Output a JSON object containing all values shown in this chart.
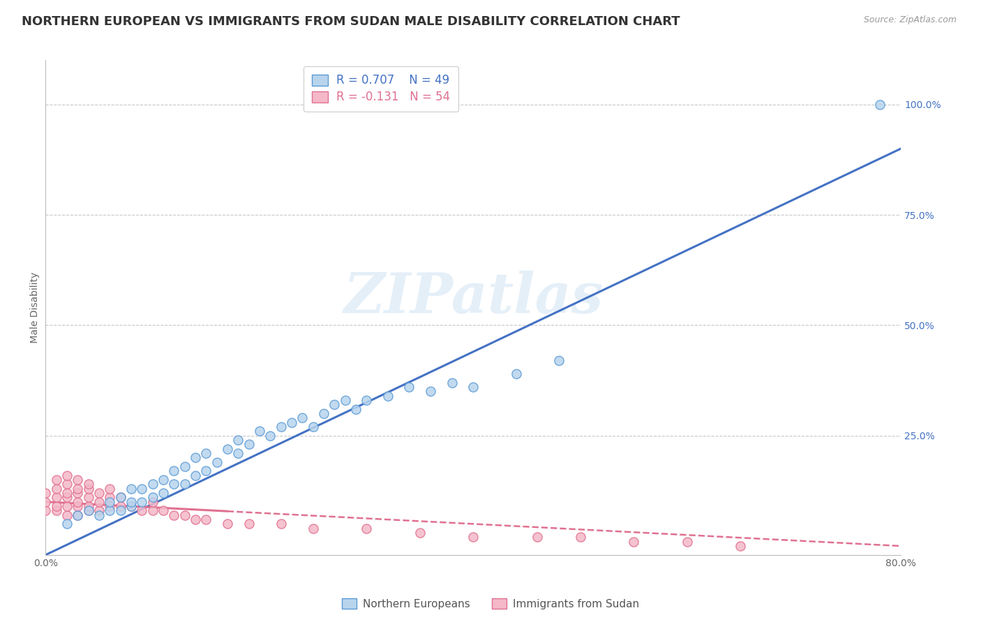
{
  "title": "NORTHERN EUROPEAN VS IMMIGRANTS FROM SUDAN MALE DISABILITY CORRELATION CHART",
  "source": "Source: ZipAtlas.com",
  "ylabel": "Male Disability",
  "xlim": [
    0.0,
    0.8
  ],
  "ylim": [
    -0.02,
    1.1
  ],
  "watermark": "ZIPatlas",
  "ne_color_fill": "#b8d4ed",
  "ne_color_edge": "#5b9bd5",
  "su_color_fill": "#f4b8c8",
  "su_color_edge": "#e07090",
  "ne_line_color": "#4472c4",
  "su_line_color": "#e07090",
  "grid_color": "#c8c8c8",
  "background_color": "#ffffff",
  "title_fontsize": 13,
  "axis_label_fontsize": 10,
  "tick_fontsize": 10,
  "legend_fontsize": 12,
  "ne_x": [
    0.02,
    0.03,
    0.04,
    0.05,
    0.06,
    0.06,
    0.07,
    0.07,
    0.08,
    0.08,
    0.08,
    0.09,
    0.09,
    0.1,
    0.1,
    0.11,
    0.11,
    0.12,
    0.12,
    0.13,
    0.13,
    0.14,
    0.14,
    0.15,
    0.15,
    0.16,
    0.17,
    0.18,
    0.18,
    0.19,
    0.2,
    0.21,
    0.22,
    0.23,
    0.24,
    0.25,
    0.26,
    0.27,
    0.28,
    0.29,
    0.3,
    0.32,
    0.34,
    0.36,
    0.38,
    0.4,
    0.44,
    0.48,
    0.78
  ],
  "ne_y": [
    0.05,
    0.07,
    0.08,
    0.07,
    0.08,
    0.1,
    0.08,
    0.11,
    0.09,
    0.1,
    0.13,
    0.1,
    0.13,
    0.11,
    0.14,
    0.12,
    0.15,
    0.14,
    0.17,
    0.14,
    0.18,
    0.16,
    0.2,
    0.17,
    0.21,
    0.19,
    0.22,
    0.21,
    0.24,
    0.23,
    0.26,
    0.25,
    0.27,
    0.28,
    0.29,
    0.27,
    0.3,
    0.32,
    0.33,
    0.31,
    0.33,
    0.34,
    0.36,
    0.35,
    0.37,
    0.36,
    0.39,
    0.42,
    1.0
  ],
  "su_x": [
    0.0,
    0.0,
    0.0,
    0.01,
    0.01,
    0.01,
    0.01,
    0.01,
    0.02,
    0.02,
    0.02,
    0.02,
    0.02,
    0.02,
    0.03,
    0.03,
    0.03,
    0.03,
    0.03,
    0.03,
    0.04,
    0.04,
    0.04,
    0.04,
    0.04,
    0.05,
    0.05,
    0.05,
    0.06,
    0.06,
    0.06,
    0.07,
    0.07,
    0.08,
    0.09,
    0.1,
    0.1,
    0.11,
    0.12,
    0.13,
    0.14,
    0.15,
    0.17,
    0.19,
    0.22,
    0.25,
    0.3,
    0.35,
    0.4,
    0.46,
    0.5,
    0.55,
    0.6,
    0.65
  ],
  "su_y": [
    0.08,
    0.1,
    0.12,
    0.08,
    0.09,
    0.11,
    0.13,
    0.15,
    0.07,
    0.09,
    0.11,
    0.12,
    0.14,
    0.16,
    0.07,
    0.09,
    0.1,
    0.12,
    0.13,
    0.15,
    0.08,
    0.09,
    0.11,
    0.13,
    0.14,
    0.08,
    0.1,
    0.12,
    0.09,
    0.11,
    0.13,
    0.09,
    0.11,
    0.09,
    0.08,
    0.08,
    0.1,
    0.08,
    0.07,
    0.07,
    0.06,
    0.06,
    0.05,
    0.05,
    0.05,
    0.04,
    0.04,
    0.03,
    0.02,
    0.02,
    0.02,
    0.01,
    0.01,
    0.0
  ],
  "ne_line_x": [
    0.0,
    0.8
  ],
  "ne_line_y": [
    -0.02,
    0.9
  ],
  "su_line_x": [
    0.0,
    0.8
  ],
  "su_line_y": [
    0.1,
    0.0
  ]
}
